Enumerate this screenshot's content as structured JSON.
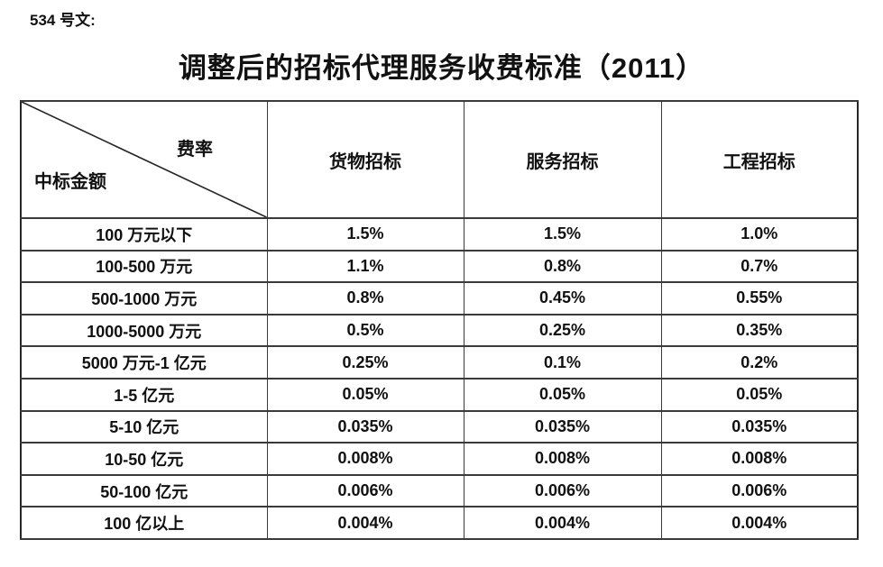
{
  "page": {
    "doc_label": "534 号文:",
    "title": "调整后的招标代理服务收费标准（2011）"
  },
  "table": {
    "corner": {
      "top_right": "费率",
      "bottom_left": "中标金额"
    },
    "columns": [
      "货物招标",
      "服务招标",
      "工程招标"
    ],
    "rows": [
      {
        "label": "100 万元以下",
        "values": [
          "1.5%",
          "1.5%",
          "1.0%"
        ]
      },
      {
        "label": "100-500 万元",
        "values": [
          "1.1%",
          "0.8%",
          "0.7%"
        ]
      },
      {
        "label": "500-1000 万元",
        "values": [
          "0.8%",
          "0.45%",
          "0.55%"
        ]
      },
      {
        "label": "1000-5000 万元",
        "values": [
          "0.5%",
          "0.25%",
          "0.35%"
        ]
      },
      {
        "label": "5000 万元-1 亿元",
        "values": [
          "0.25%",
          "0.1%",
          "0.2%"
        ]
      },
      {
        "label": "1-5 亿元",
        "values": [
          "0.05%",
          "0.05%",
          "0.05%"
        ]
      },
      {
        "label": "5-10 亿元",
        "values": [
          "0.035%",
          "0.035%",
          "0.035%"
        ]
      },
      {
        "label": "10-50 亿元",
        "values": [
          "0.008%",
          "0.008%",
          "0.008%"
        ]
      },
      {
        "label": "50-100 亿元",
        "values": [
          "0.006%",
          "0.006%",
          "0.006%"
        ]
      },
      {
        "label": "100 亿以上",
        "values": [
          "0.004%",
          "0.004%",
          "0.004%"
        ]
      }
    ]
  },
  "colors": {
    "text": "#111111",
    "border": "#2b2b2b",
    "background": "#ffffff"
  }
}
